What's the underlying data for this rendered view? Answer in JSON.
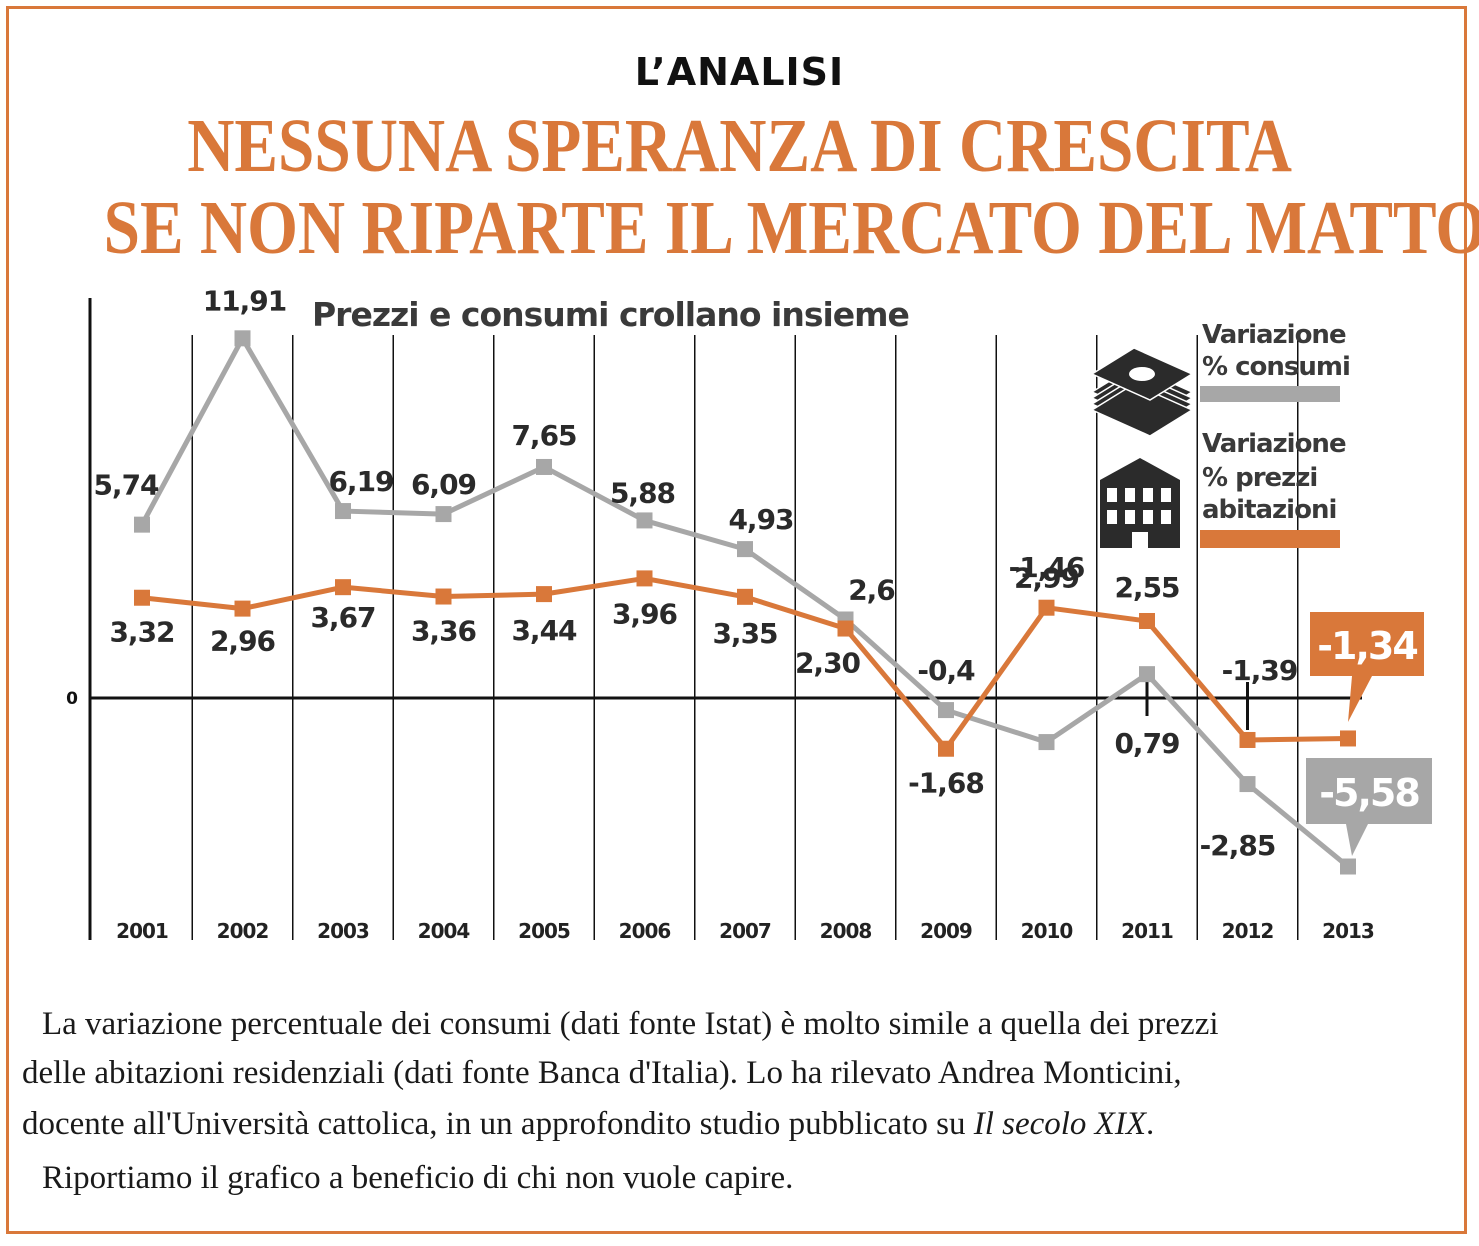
{
  "header": {
    "kicker": "L’ANALISI",
    "headline_line1": "NESSUNA SPERANZA DI CRESCITA",
    "headline_line2": "SE NON RIPARTE IL MERCATO DEL MATTONE"
  },
  "chart_data": {
    "type": "line",
    "title": "Prezzi e consumi crollano insieme",
    "categories": [
      "2001",
      "2002",
      "2003",
      "2004",
      "2005",
      "2006",
      "2007",
      "2008",
      "2009",
      "2010",
      "2011",
      "2012",
      "2013"
    ],
    "zero_label": "0",
    "series": [
      {
        "key": "consumi",
        "name_line1": "Variazione",
        "name_line2": "% consumi",
        "color": "#a7a7a7",
        "values": [
          5.74,
          11.91,
          6.19,
          6.09,
          7.65,
          5.88,
          4.93,
          2.6,
          -0.4,
          -1.46,
          0.79,
          -2.85,
          -5.58
        ],
        "labels": [
          "5,74",
          "11,91",
          "6,19",
          "6,09",
          "7,65",
          "5,88",
          "4,93",
          "2,6",
          "-0,4",
          "-1,46",
          "0,79",
          "-2,85",
          "-5,58"
        ]
      },
      {
        "key": "prezzi",
        "name_line1": "Variazione",
        "name_line2": "% prezzi",
        "name_line3": "abitazioni",
        "color": "#d9783a",
        "values": [
          3.32,
          2.96,
          3.67,
          3.36,
          3.44,
          3.96,
          3.35,
          2.3,
          -1.68,
          2.99,
          2.55,
          -1.39,
          -1.34
        ],
        "labels": [
          "3,32",
          "2,96",
          "3,67",
          "3,36",
          "3,44",
          "3,96",
          "3,35",
          "2,30",
          "-1,68",
          "2,99",
          "2,55",
          "-1,39",
          "-1,34"
        ]
      }
    ],
    "grid": "vertical",
    "legend_position": "top-right",
    "icons": [
      "money-stack-icon",
      "building-icon"
    ]
  },
  "caption": {
    "line1": "La variazione percentuale dei consumi (dati fonte Istat) è molto simile a quella dei prezzi",
    "line2": "delle abitazioni residenziali (dati fonte Banca d'Italia). Lo ha rilevato Andrea Monticini,",
    "line3_before": "docente all'Università cattolica, in un approfondito studio pubblicato su ",
    "line3_italic": "Il secolo XIX",
    "line3_after": ".",
    "line4": "Riportiamo il grafico a beneficio di chi non vuole capire."
  }
}
